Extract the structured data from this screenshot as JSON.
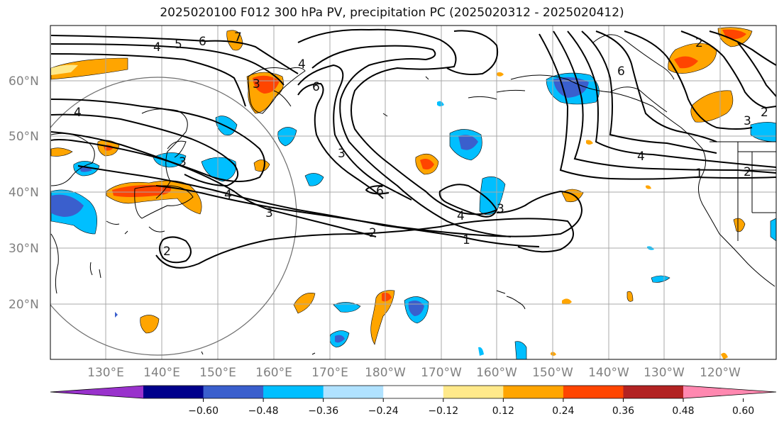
{
  "title": "2025020100 F012 300 hPa PV, precipitation PC (2025020312 - 2025020412)",
  "lat_labels": [
    "60°N",
    "50°N",
    "40°N",
    "30°N",
    "20°N"
  ],
  "lon_labels": [
    "130°E",
    "140°E",
    "150°E",
    "160°E",
    "170°E",
    "180°W",
    "170°W",
    "160°W",
    "150°W",
    "140°W",
    "130°W",
    "120°W"
  ],
  "colorbar": {
    "colors": [
      "#9932cc",
      "#00008b",
      "#3a5fcd",
      "#00bfff",
      "#b0e2ff",
      "#ffffff",
      "#ffe98a",
      "#ffa500",
      "#ff4500",
      "#b22222",
      "#ff88b0"
    ],
    "tick_labels": [
      "−0.60",
      "−0.48",
      "−0.36",
      "−0.24",
      "−0.12",
      "0.12",
      "0.24",
      "0.36",
      "0.48",
      "0.60"
    ]
  },
  "contour_labels": [
    "4",
    "5",
    "6",
    "7",
    "3",
    "4",
    "6",
    "3",
    "4",
    "3",
    "2",
    "1",
    "4",
    "3",
    "2",
    "6",
    "3",
    "1",
    "2",
    "4",
    "4",
    "6",
    "3",
    "2",
    "2"
  ]
}
